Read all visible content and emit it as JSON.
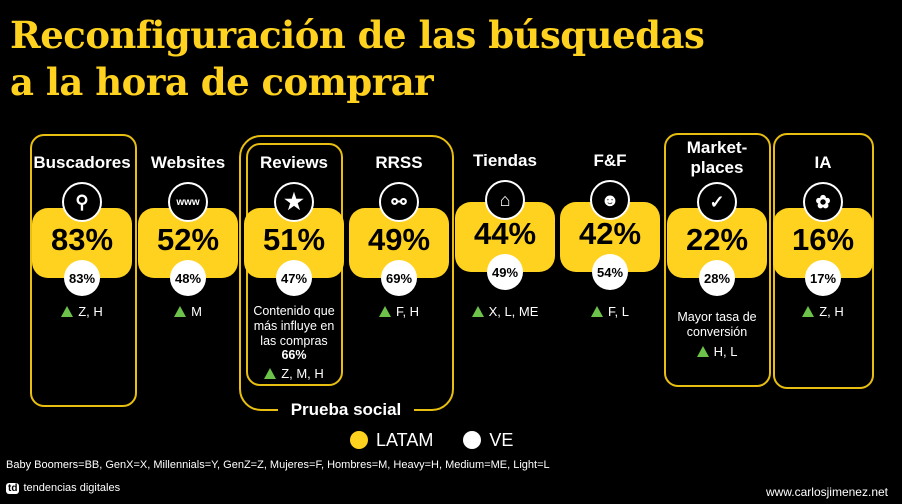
{
  "title_line1": "Reconfiguración de las búsquedas",
  "title_line2": "a la hora de comprar",
  "group_label": "Prueba social",
  "columns": [
    {
      "label": "Buscadores",
      "icon": "search-icon",
      "latam": "83%",
      "ve": "83%",
      "segments": "Z, H"
    },
    {
      "label": "Websites",
      "icon": "www-icon",
      "latam": "52%",
      "ve": "48%",
      "segments": "M"
    },
    {
      "label": "Reviews",
      "icon": "star-icon",
      "latam": "51%",
      "ve": "47%",
      "note": "Contenido que más influye en las compras",
      "note_value": "66%",
      "segments": "Z, M, H"
    },
    {
      "label": "RRSS",
      "icon": "network-icon",
      "latam": "49%",
      "ve": "69%",
      "segments": "F, H"
    },
    {
      "label": "Tiendas",
      "icon": "store-icon",
      "latam": "44%",
      "ve": "49%",
      "segments": "X, L, ME"
    },
    {
      "label": "F&F",
      "icon": "smile-icon",
      "latam": "42%",
      "ve": "54%",
      "segments": "F, L"
    },
    {
      "label": "Market-\nplaces",
      "label1": "Market-",
      "label2": "places",
      "icon": "basket-icon",
      "latam": "22%",
      "ve": "28%",
      "note": "Mayor tasa de conversión",
      "segments": "H, L"
    },
    {
      "label": "IA",
      "icon": "brain-icon",
      "latam": "16%",
      "ve": "17%",
      "segments": "Z, H"
    }
  ],
  "legend": {
    "latam": "LATAM",
    "ve": "VE"
  },
  "colors": {
    "latam": "#FFD21F",
    "ve": "#FFFFFF",
    "up": "#6CC24A"
  },
  "abbreviations": "Baby Boomers=BB, GenX=X, Millennials=Y, GenZ=Z, Mujeres=F, Hombres=M, Heavy=H, Medium=ME, Light=L",
  "brand": "tendencias digitales",
  "brand_mark": "td",
  "website": "www.carlosjimenez.net"
}
